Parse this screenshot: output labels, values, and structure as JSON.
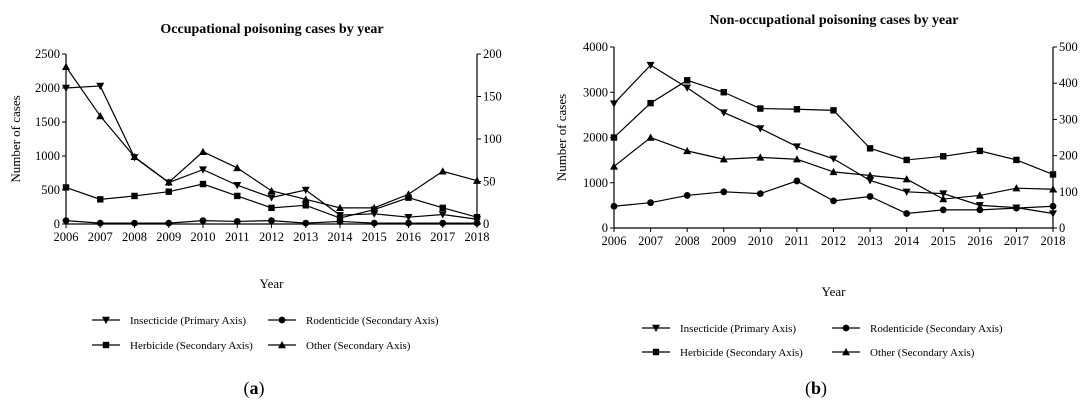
{
  "chart_data": [
    {
      "type": "line",
      "panel": "a",
      "title": "Occupational poisoning cases by year",
      "xlabel": "Year",
      "ylabel": "Number of cases",
      "x": [
        2006,
        2007,
        2008,
        2009,
        2010,
        2011,
        2012,
        2013,
        2014,
        2015,
        2016,
        2017,
        2018
      ],
      "y_primary_lim": [
        0,
        2500
      ],
      "y_primary_ticks": [
        0,
        500,
        1000,
        1500,
        2000,
        2500
      ],
      "y_secondary_lim": [
        0,
        200
      ],
      "y_secondary_ticks": [
        0,
        50,
        100,
        150,
        200
      ],
      "legend_position": "bottom",
      "grid": false,
      "series": [
        {
          "name": "Insecticide (Primary Axis)",
          "axis": "primary",
          "marker": "triangle-down",
          "values": [
            2000,
            2030,
            980,
            610,
            800,
            570,
            390,
            500,
            130,
            150,
            100,
            140,
            70
          ]
        },
        {
          "name": "Rodenticide (Secondary Axis)",
          "axis": "secondary",
          "marker": "circle",
          "values": [
            4,
            1,
            1,
            1,
            4,
            3,
            4,
            1,
            3,
            1,
            1,
            1,
            1
          ]
        },
        {
          "name": "Herbicide (Secondary Axis)",
          "axis": "secondary",
          "marker": "square",
          "values": [
            43,
            29,
            33,
            38,
            47,
            33,
            19,
            22,
            7,
            17,
            31,
            19,
            8
          ]
        },
        {
          "name": "Other (Secondary Axis)",
          "axis": "secondary",
          "marker": "triangle-up",
          "values": [
            185,
            127,
            79,
            49,
            85,
            66,
            39,
            29,
            19,
            19,
            35,
            62,
            51
          ]
        }
      ]
    },
    {
      "type": "line",
      "panel": "b",
      "title": "Non-occupational poisoning cases by year",
      "xlabel": "Year",
      "ylabel": "Number of cases",
      "x": [
        2006,
        2007,
        2008,
        2009,
        2010,
        2011,
        2012,
        2013,
        2014,
        2015,
        2016,
        2017,
        2018
      ],
      "y_primary_lim": [
        0,
        4000
      ],
      "y_primary_ticks": [
        0,
        1000,
        2000,
        3000,
        4000
      ],
      "y_secondary_lim": [
        0,
        500
      ],
      "y_secondary_ticks": [
        0,
        100,
        200,
        300,
        400,
        500
      ],
      "legend_position": "bottom",
      "grid": false,
      "series": [
        {
          "name": "Insecticide (Primary Axis)",
          "axis": "primary",
          "marker": "triangle-down",
          "values": [
            2750,
            3600,
            3100,
            2550,
            2200,
            1800,
            1530,
            1050,
            800,
            760,
            500,
            450,
            320
          ]
        },
        {
          "name": "Rodenticide (Secondary Axis)",
          "axis": "secondary",
          "marker": "circle",
          "values": [
            60,
            70,
            90,
            100,
            95,
            130,
            75,
            87,
            40,
            50,
            50,
            55,
            60
          ]
        },
        {
          "name": "Herbicide (Secondary Axis)",
          "axis": "secondary",
          "marker": "square",
          "values": [
            250,
            345,
            408,
            375,
            330,
            328,
            325,
            220,
            188,
            198,
            213,
            188,
            148
          ]
        },
        {
          "name": "Other (Secondary Axis)",
          "axis": "secondary",
          "marker": "triangle-up",
          "values": [
            170,
            250,
            213,
            190,
            195,
            190,
            155,
            145,
            135,
            80,
            90,
            110,
            107
          ]
        }
      ]
    }
  ],
  "panel_labels": [
    "a",
    "b"
  ]
}
